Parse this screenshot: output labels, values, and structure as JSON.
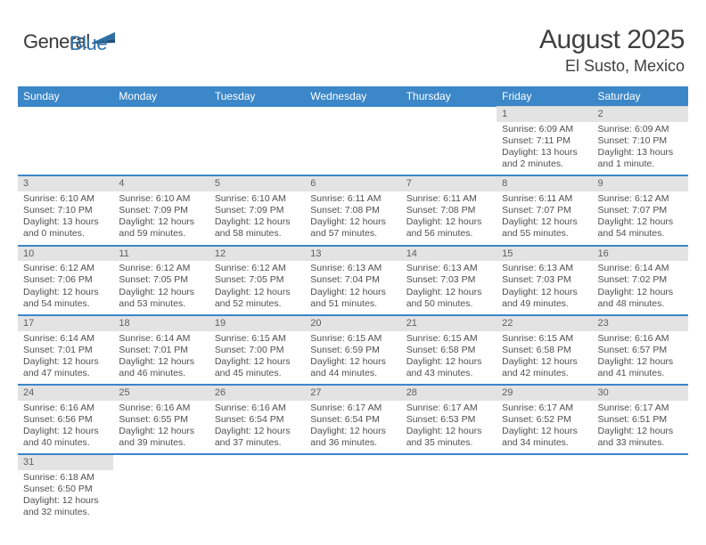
{
  "logo": {
    "text1": "General",
    "text2": "Blue"
  },
  "title": "August 2025",
  "location": "El Susto, Mexico",
  "colors": {
    "header_bg": "#3b87c8",
    "daynum_bg": "#e3e3e3",
    "rule": "#3b87c8",
    "logo_blue": "#2f6fa8"
  },
  "weekdays": [
    "Sunday",
    "Monday",
    "Tuesday",
    "Wednesday",
    "Thursday",
    "Friday",
    "Saturday"
  ],
  "weeks": [
    [
      null,
      null,
      null,
      null,
      null,
      {
        "n": "1",
        "sr": "Sunrise: 6:09 AM",
        "ss": "Sunset: 7:11 PM",
        "dl": "Daylight: 13 hours and 2 minutes."
      },
      {
        "n": "2",
        "sr": "Sunrise: 6:09 AM",
        "ss": "Sunset: 7:10 PM",
        "dl": "Daylight: 13 hours and 1 minute."
      }
    ],
    [
      {
        "n": "3",
        "sr": "Sunrise: 6:10 AM",
        "ss": "Sunset: 7:10 PM",
        "dl": "Daylight: 13 hours and 0 minutes."
      },
      {
        "n": "4",
        "sr": "Sunrise: 6:10 AM",
        "ss": "Sunset: 7:09 PM",
        "dl": "Daylight: 12 hours and 59 minutes."
      },
      {
        "n": "5",
        "sr": "Sunrise: 6:10 AM",
        "ss": "Sunset: 7:09 PM",
        "dl": "Daylight: 12 hours and 58 minutes."
      },
      {
        "n": "6",
        "sr": "Sunrise: 6:11 AM",
        "ss": "Sunset: 7:08 PM",
        "dl": "Daylight: 12 hours and 57 minutes."
      },
      {
        "n": "7",
        "sr": "Sunrise: 6:11 AM",
        "ss": "Sunset: 7:08 PM",
        "dl": "Daylight: 12 hours and 56 minutes."
      },
      {
        "n": "8",
        "sr": "Sunrise: 6:11 AM",
        "ss": "Sunset: 7:07 PM",
        "dl": "Daylight: 12 hours and 55 minutes."
      },
      {
        "n": "9",
        "sr": "Sunrise: 6:12 AM",
        "ss": "Sunset: 7:07 PM",
        "dl": "Daylight: 12 hours and 54 minutes."
      }
    ],
    [
      {
        "n": "10",
        "sr": "Sunrise: 6:12 AM",
        "ss": "Sunset: 7:06 PM",
        "dl": "Daylight: 12 hours and 54 minutes."
      },
      {
        "n": "11",
        "sr": "Sunrise: 6:12 AM",
        "ss": "Sunset: 7:05 PM",
        "dl": "Daylight: 12 hours and 53 minutes."
      },
      {
        "n": "12",
        "sr": "Sunrise: 6:12 AM",
        "ss": "Sunset: 7:05 PM",
        "dl": "Daylight: 12 hours and 52 minutes."
      },
      {
        "n": "13",
        "sr": "Sunrise: 6:13 AM",
        "ss": "Sunset: 7:04 PM",
        "dl": "Daylight: 12 hours and 51 minutes."
      },
      {
        "n": "14",
        "sr": "Sunrise: 6:13 AM",
        "ss": "Sunset: 7:03 PM",
        "dl": "Daylight: 12 hours and 50 minutes."
      },
      {
        "n": "15",
        "sr": "Sunrise: 6:13 AM",
        "ss": "Sunset: 7:03 PM",
        "dl": "Daylight: 12 hours and 49 minutes."
      },
      {
        "n": "16",
        "sr": "Sunrise: 6:14 AM",
        "ss": "Sunset: 7:02 PM",
        "dl": "Daylight: 12 hours and 48 minutes."
      }
    ],
    [
      {
        "n": "17",
        "sr": "Sunrise: 6:14 AM",
        "ss": "Sunset: 7:01 PM",
        "dl": "Daylight: 12 hours and 47 minutes."
      },
      {
        "n": "18",
        "sr": "Sunrise: 6:14 AM",
        "ss": "Sunset: 7:01 PM",
        "dl": "Daylight: 12 hours and 46 minutes."
      },
      {
        "n": "19",
        "sr": "Sunrise: 6:15 AM",
        "ss": "Sunset: 7:00 PM",
        "dl": "Daylight: 12 hours and 45 minutes."
      },
      {
        "n": "20",
        "sr": "Sunrise: 6:15 AM",
        "ss": "Sunset: 6:59 PM",
        "dl": "Daylight: 12 hours and 44 minutes."
      },
      {
        "n": "21",
        "sr": "Sunrise: 6:15 AM",
        "ss": "Sunset: 6:58 PM",
        "dl": "Daylight: 12 hours and 43 minutes."
      },
      {
        "n": "22",
        "sr": "Sunrise: 6:15 AM",
        "ss": "Sunset: 6:58 PM",
        "dl": "Daylight: 12 hours and 42 minutes."
      },
      {
        "n": "23",
        "sr": "Sunrise: 6:16 AM",
        "ss": "Sunset: 6:57 PM",
        "dl": "Daylight: 12 hours and 41 minutes."
      }
    ],
    [
      {
        "n": "24",
        "sr": "Sunrise: 6:16 AM",
        "ss": "Sunset: 6:56 PM",
        "dl": "Daylight: 12 hours and 40 minutes."
      },
      {
        "n": "25",
        "sr": "Sunrise: 6:16 AM",
        "ss": "Sunset: 6:55 PM",
        "dl": "Daylight: 12 hours and 39 minutes."
      },
      {
        "n": "26",
        "sr": "Sunrise: 6:16 AM",
        "ss": "Sunset: 6:54 PM",
        "dl": "Daylight: 12 hours and 37 minutes."
      },
      {
        "n": "27",
        "sr": "Sunrise: 6:17 AM",
        "ss": "Sunset: 6:54 PM",
        "dl": "Daylight: 12 hours and 36 minutes."
      },
      {
        "n": "28",
        "sr": "Sunrise: 6:17 AM",
        "ss": "Sunset: 6:53 PM",
        "dl": "Daylight: 12 hours and 35 minutes."
      },
      {
        "n": "29",
        "sr": "Sunrise: 6:17 AM",
        "ss": "Sunset: 6:52 PM",
        "dl": "Daylight: 12 hours and 34 minutes."
      },
      {
        "n": "30",
        "sr": "Sunrise: 6:17 AM",
        "ss": "Sunset: 6:51 PM",
        "dl": "Daylight: 12 hours and 33 minutes."
      }
    ],
    [
      {
        "n": "31",
        "sr": "Sunrise: 6:18 AM",
        "ss": "Sunset: 6:50 PM",
        "dl": "Daylight: 12 hours and 32 minutes."
      },
      null,
      null,
      null,
      null,
      null,
      null
    ]
  ]
}
